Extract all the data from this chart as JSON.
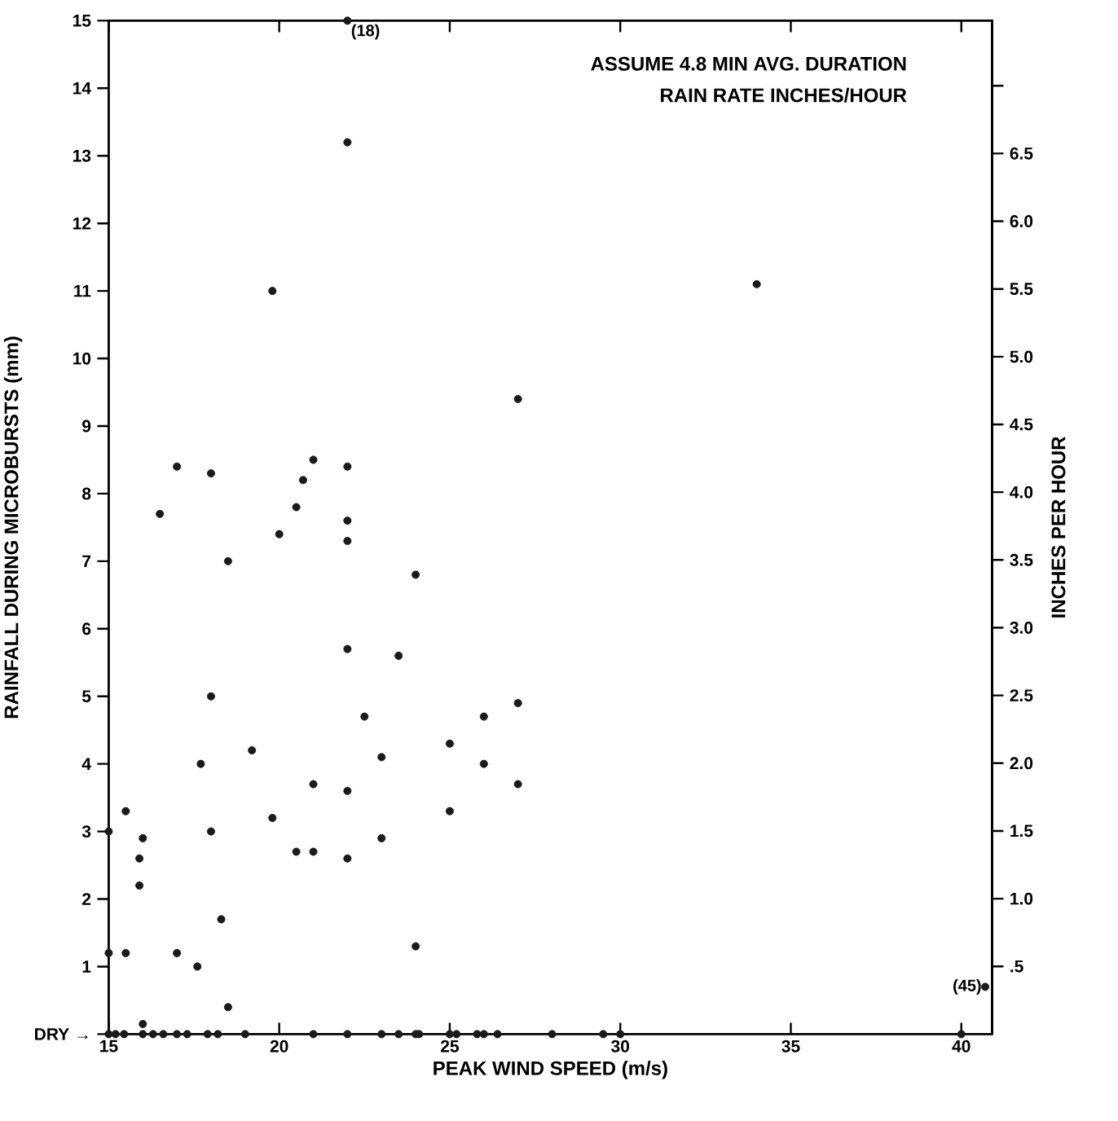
{
  "chart_data": {
    "type": "scatter",
    "xlabel": "PEAK WIND SPEED (m/s)",
    "ylabel": "RAINFALL DURING MICROBURSTS (mm)",
    "y2label": "INCHES PER HOUR",
    "annotations": [
      "ASSUME 4.8 MIN AVG. DURATION",
      "RAIN RATE INCHES/HOUR",
      {
        "text": "(18)",
        "x": 22.0,
        "y": 15.0
      },
      {
        "text": "(45)",
        "x": 40.7,
        "y": 0.7
      }
    ],
    "xlim": [
      15,
      40.9
    ],
    "ylim": [
      0,
      15
    ],
    "xticks": [
      15,
      20,
      25,
      30,
      35,
      40
    ],
    "yticks": [
      {
        "value": 0,
        "label": "DRY →"
      },
      1,
      2,
      3,
      4,
      5,
      6,
      7,
      8,
      9,
      10,
      11,
      12,
      13,
      14,
      15
    ],
    "y2lim": [
      0,
      7.48
    ],
    "y2ticks": [
      {
        "value": 0.5,
        "label": ".5"
      },
      {
        "value": 1,
        "label": "1.0"
      },
      {
        "value": 1.5,
        "label": "1.5"
      },
      {
        "value": 2,
        "label": "2.0"
      },
      {
        "value": 2.5,
        "label": "2.5"
      },
      {
        "value": 3,
        "label": "3.0"
      },
      {
        "value": 3.5,
        "label": "3.5"
      },
      {
        "value": 4,
        "label": "4.0"
      },
      {
        "value": 4.5,
        "label": "4.5"
      },
      {
        "value": 5,
        "label": "5.0"
      },
      {
        "value": 5.5,
        "label": "5.5"
      },
      {
        "value": 6,
        "label": "6.0"
      },
      {
        "value": 6.5,
        "label": "6.5"
      },
      {
        "value": 7,
        "label": null
      }
    ],
    "series": [
      {
        "color": "#1a1a1a",
        "x": [
          22.0,
          22.0,
          19.8,
          27.0,
          16.5,
          17.0,
          18.0,
          18.5,
          20.0,
          20.5,
          20.7,
          21.0,
          22.0,
          22.0,
          22.0,
          34.0,
          24.0,
          22.0,
          23.5,
          18.0,
          22.5,
          26.0,
          27.0,
          25.0,
          19.2,
          17.7,
          23.0,
          26.0,
          21.0,
          22.0,
          27.0,
          15.5,
          19.8,
          25.0,
          15.0,
          18.0,
          16.0,
          15.9,
          20.5,
          21.0,
          22.0,
          23.0,
          15.9,
          18.3,
          24.0,
          15.0,
          15.5,
          17.0,
          17.6,
          18.5,
          40.7,
          16.0,
          15.0,
          15.2,
          15.45,
          16.0,
          16.3,
          16.6,
          17.0,
          17.3,
          17.9,
          18.2,
          19.0,
          21.0,
          22.0,
          23.0,
          23.5,
          24.0,
          24.1,
          25.0,
          25.2,
          25.8,
          26.0,
          26.4,
          28.0,
          29.5,
          30.0,
          40.0
        ],
        "values": [
          15.0,
          13.2,
          11.0,
          9.4,
          7.7,
          8.4,
          8.3,
          7.0,
          7.4,
          7.8,
          8.2,
          8.5,
          8.4,
          7.6,
          7.3,
          11.1,
          6.8,
          5.7,
          5.6,
          5.0,
          4.7,
          4.7,
          4.9,
          4.3,
          4.2,
          4.0,
          4.1,
          4.0,
          3.7,
          3.6,
          3.7,
          3.3,
          3.2,
          3.3,
          3.0,
          3.0,
          2.9,
          2.6,
          2.7,
          2.7,
          2.6,
          2.9,
          2.2,
          1.7,
          1.3,
          1.2,
          1.2,
          1.2,
          1.0,
          0.4,
          0.7,
          0.15,
          0,
          0,
          0,
          0,
          0,
          0,
          0,
          0,
          0,
          0,
          0,
          0,
          0,
          0,
          0,
          0,
          0,
          0,
          0,
          0,
          0,
          0,
          0,
          0,
          0,
          0
        ]
      }
    ]
  }
}
